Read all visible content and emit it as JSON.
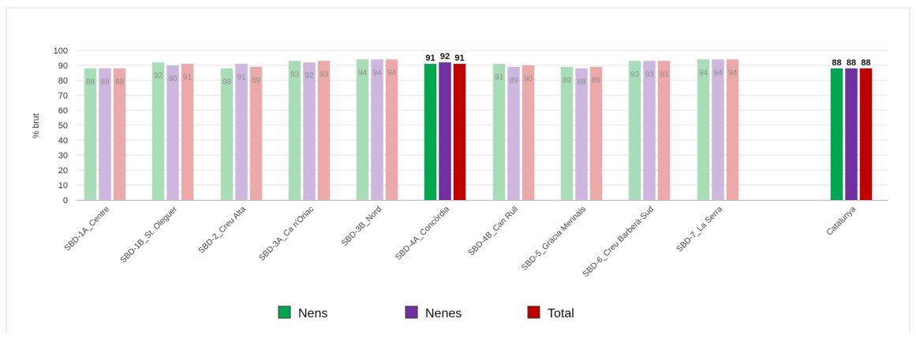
{
  "chart_data": {
    "type": "bar",
    "ylabel": "% brut",
    "ylim": [
      0,
      100
    ],
    "yticks": [
      0,
      10,
      20,
      30,
      40,
      50,
      60,
      70,
      80,
      90,
      100
    ],
    "grid": true,
    "legend_position": "bottom",
    "categories": [
      "SBD-1A_Centre",
      "SBD-1B_St. Oleguer",
      "SBD-2_Creu Alta",
      "SBD-3A_Ca n'Oriac",
      "SBD-3B_Nord",
      "SBD-4A_Concòrdia",
      "SBD-4B_Can Rull",
      "SBD-5_Gràcia Merinals",
      "SBD-6_Creu Barberà-Sud",
      "SBD-7_La Serra",
      "Catalunya"
    ],
    "highlighted": [
      "SBD-4A_Concòrdia",
      "Catalunya"
    ],
    "series": [
      {
        "name": "Nens",
        "color": "#00A650",
        "light_color": "#A8DDB8",
        "values": [
          88,
          92,
          88,
          93,
          94,
          91,
          91,
          89,
          93,
          94,
          88
        ]
      },
      {
        "name": "Nenes",
        "color": "#7030A0",
        "light_color": "#CDB7DE",
        "values": [
          88,
          90,
          91,
          92,
          94,
          92,
          89,
          88,
          93,
          94,
          88
        ]
      },
      {
        "name": "Total",
        "color": "#C00000",
        "light_color": "#EBA9A9",
        "values": [
          88,
          91,
          89,
          93,
          94,
          91,
          90,
          89,
          93,
          94,
          88
        ]
      }
    ]
  }
}
